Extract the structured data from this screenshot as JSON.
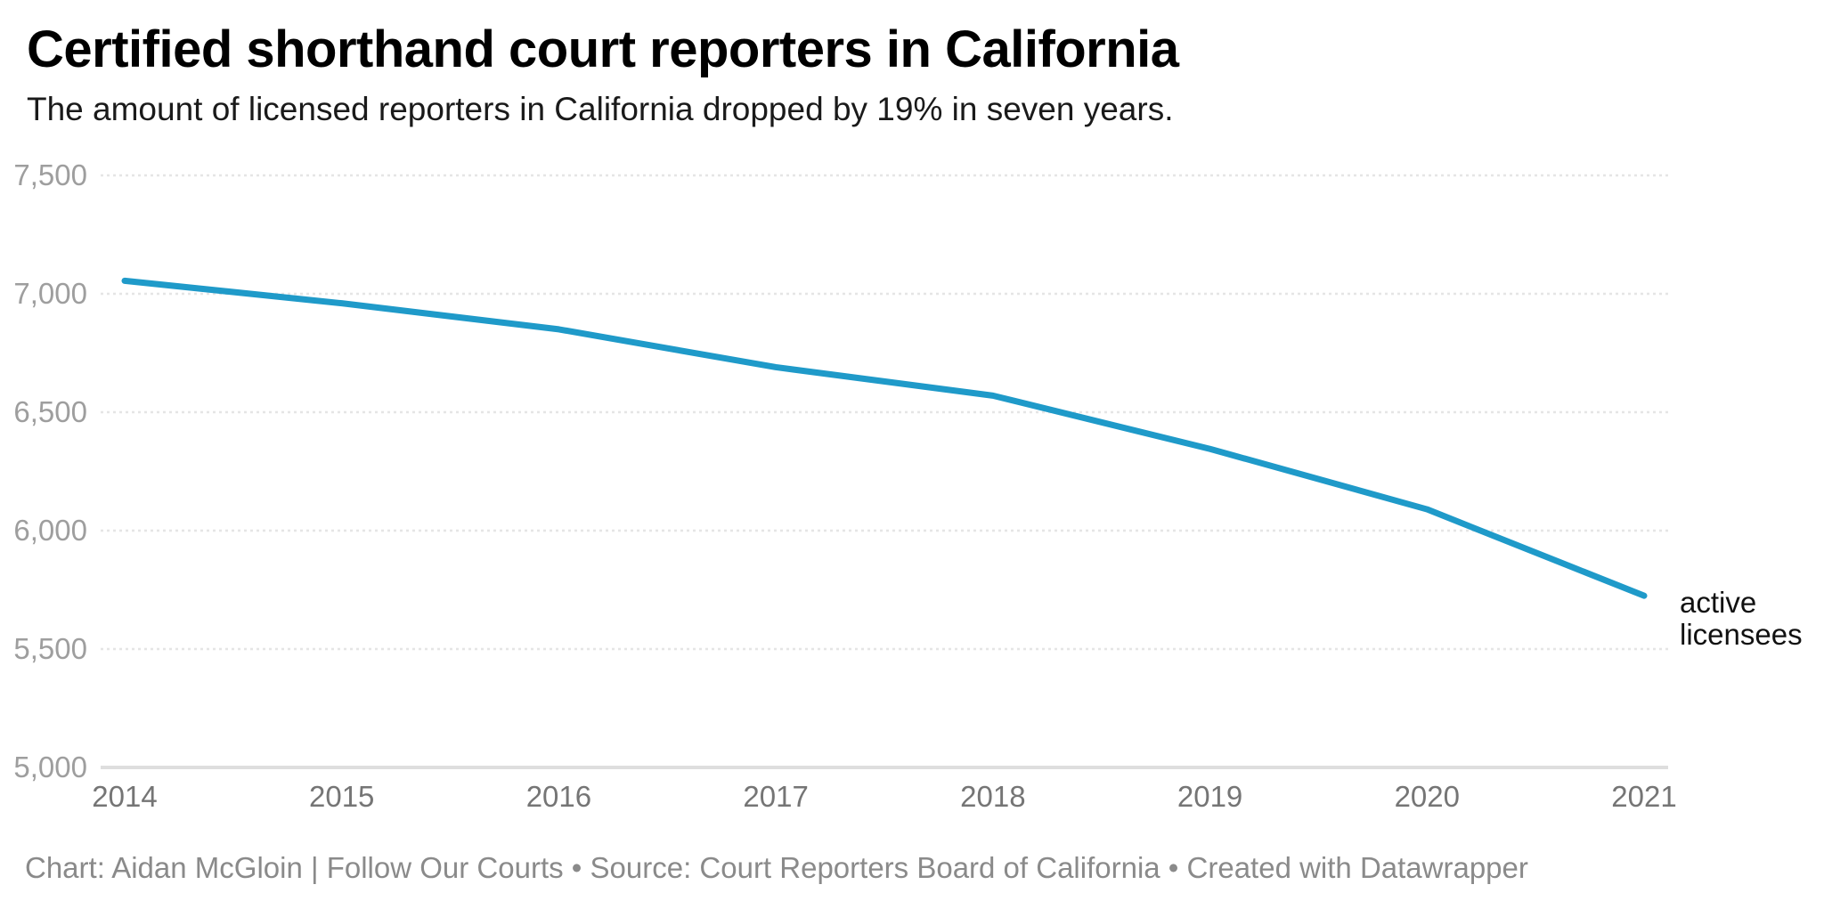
{
  "header": {
    "title": "Certified shorthand court reporters in California",
    "subtitle": "The amount of licensed reporters in California dropped by 19% in seven years."
  },
  "chart_data": {
    "type": "line",
    "title": "Certified shorthand court reporters in California",
    "subtitle": "The amount of licensed reporters in California dropped by 19% in seven years.",
    "x": [
      2014,
      2015,
      2016,
      2017,
      2018,
      2019,
      2020,
      2021
    ],
    "xtick_labels": [
      "2014",
      "2015",
      "2016",
      "2017",
      "2018",
      "2019",
      "2020",
      "2021"
    ],
    "series": [
      {
        "name": "active licensees",
        "values": [
          7055,
          6960,
          6850,
          6690,
          6570,
          6345,
          6090,
          5725
        ]
      }
    ],
    "ylim": [
      5000,
      7500
    ],
    "yticks": [
      5000,
      5500,
      6000,
      6500,
      7000,
      7500
    ],
    "ytick_labels": [
      "5,000",
      "5,500",
      "6,000",
      "6,500",
      "7,000",
      "7,500"
    ],
    "grid": "horizontal",
    "legend_position": "line-end-annotation",
    "annotation_lines": [
      "active",
      "licensees"
    ],
    "line_color": "#1f9ac9",
    "gridline_color": "#e5e5e5",
    "baseline_color": "#dedede",
    "ytick_color": "#9e9e9e",
    "xtick_color": "#757575",
    "annotation_color": "#111111"
  },
  "footer": {
    "text": "Chart: Aidan McGloin | Follow Our Courts • Source: Court Reporters Board of California • Created with Datawrapper"
  }
}
